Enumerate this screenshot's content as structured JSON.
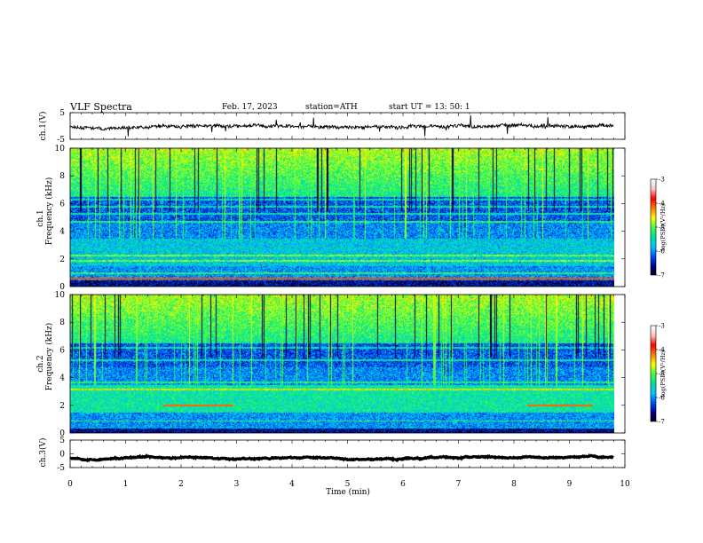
{
  "header": {
    "title": "VLF  Spectra",
    "date": "Feb. 17, 2023",
    "station": "station=ATH",
    "start": "start  UT  =   13: 50: 1"
  },
  "chart_data": [
    {
      "type": "line",
      "name": "ch1-waveform",
      "ylabel": "ch.1(V)",
      "ylim": [
        -5,
        5
      ],
      "yticks": [
        "5",
        "-5"
      ],
      "xlim": [
        0,
        10
      ],
      "x_end": 9.8,
      "level": -0.2,
      "noise": 0.6,
      "spike_amplitude": 2.5
    },
    {
      "type": "heatmap",
      "name": "ch1-spectrogram",
      "ylabel": "Frequency  (kHz)",
      "channel_label": "ch.1",
      "ylim": [
        0,
        10
      ],
      "yticks": [
        "0",
        "2",
        "4",
        "6",
        "8",
        "10"
      ],
      "xlim": [
        0,
        10
      ],
      "x_end": 9.8,
      "colorbar": {
        "label": "log(PSD)(V²/Hz)",
        "range": [
          -7,
          -3
        ],
        "ticks": [
          "-3",
          "-4",
          "-5",
          "-6",
          "-7"
        ],
        "colors": [
          "#000000",
          "#00008b",
          "#0050ff",
          "#00c8ff",
          "#00e0a0",
          "#40ff40",
          "#ffff00",
          "#ff8000",
          "#ff0000",
          "#ffc0c0",
          "#ffffff"
        ]
      }
    },
    {
      "type": "heatmap",
      "name": "ch2-spectrogram",
      "ylabel": "Frequency  (kHz)",
      "channel_label": "ch.2",
      "ylim": [
        0,
        10
      ],
      "yticks": [
        "0",
        "2",
        "4",
        "6",
        "8",
        "10"
      ],
      "xlim": [
        0,
        10
      ],
      "x_end": 9.8,
      "colorbar": {
        "label": "log(PSD)(V²/Hz)",
        "range": [
          -7,
          -3
        ],
        "ticks": [
          "-3",
          "-4",
          "-5",
          "-6",
          "-7"
        ],
        "colors": [
          "#000000",
          "#00008b",
          "#0050ff",
          "#00c8ff",
          "#00e0a0",
          "#40ff40",
          "#ffff00",
          "#ff8000",
          "#ff0000",
          "#ffc0c0",
          "#ffffff"
        ]
      }
    },
    {
      "type": "line",
      "name": "ch3-waveform",
      "ylabel": "ch.3(V)",
      "ylim": [
        -5,
        5
      ],
      "yticks": [
        "5",
        "0",
        "-5"
      ],
      "xlim": [
        0,
        10
      ],
      "x_end": 9.8,
      "level": -1.5,
      "noise": 0.15,
      "spike_amplitude": 0
    }
  ],
  "x_axis": {
    "label": "Time  (min)",
    "ticks": [
      "0",
      "1",
      "2",
      "3",
      "4",
      "5",
      "6",
      "7",
      "8",
      "9",
      "10"
    ]
  }
}
